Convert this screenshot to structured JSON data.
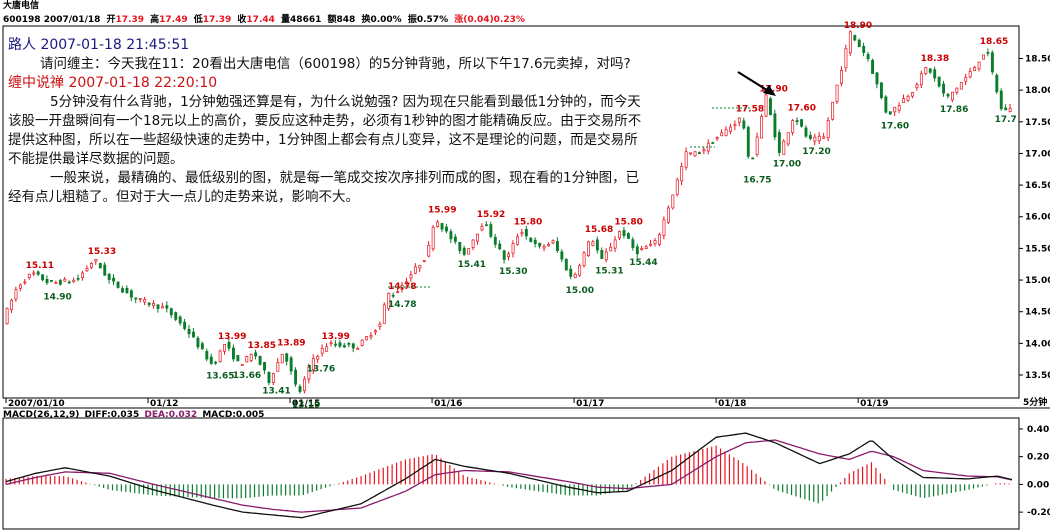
{
  "header": {
    "stock_name": "大唐电信",
    "code_date": "600198 2007/01/18",
    "open": {
      "label": "开",
      "value": "17.39"
    },
    "high": {
      "label": "高",
      "value": "17.49"
    },
    "low": {
      "label": "低",
      "value": "17.39"
    },
    "close": {
      "label": "收",
      "value": "17.44"
    },
    "volume": {
      "label": "量",
      "value": "48661"
    },
    "amount": {
      "label": "额",
      "value": "848"
    },
    "turnover": {
      "label": "换",
      "value": "0.00%"
    },
    "amplitude": {
      "label": "振",
      "value": "0.57%"
    },
    "change": {
      "label": "涨",
      "value": "(0.04)0.23%"
    }
  },
  "annotation": {
    "q_author": "路人 2007-01-18 21:45:51",
    "question": "请问缠主：今天我在11：20看出大唐电信（600198）的5分钟背驰，所以下午17.6元卖掉，对吗?",
    "a_author": "缠中说禅 2007-01-18 22:20:10",
    "answer_p1": "5分钟没有什么背驰，1分钟勉强还算是有，为什么说勉强? 因为现在只能看到最低1分钟的，而今天该股一开盘瞬间有一个18元以上的高价，要反应这种走势，必须有1秒钟的图才能精确反应。由于交易所不提供这种图，所以在一些超级快速的走势中，1分钟图上都会有点儿变异，这不是理论的问题，而是交易所不能提供最详尽数据的问题。",
    "answer_p2": "一般来说，最精确的、最低级别的图，就是每一笔成交按次序排列而成的图，现在看的1分钟图，已经有点儿粗糙了。但对于大一点儿的走势来说，影响不大。"
  },
  "macd_header": {
    "title": "MACD(26,12,9)",
    "diff": "DIFF:0.035",
    "dea": "DEA:0.032",
    "macd": "MACD:0.005"
  },
  "period_label": "5分钟",
  "colors": {
    "up": "#e8141e",
    "down": "#0a7d2c",
    "high_label": "#cc0000",
    "low_label": "#0a5c1e",
    "diff": "#111111",
    "dea": "#8b1a6b"
  },
  "chart_data": {
    "type": "candlestick",
    "y_axis": {
      "min": 13.2,
      "max": 18.95,
      "ticks": [
        13.5,
        14.0,
        14.5,
        15.0,
        15.5,
        16.0,
        16.5,
        17.0,
        17.5,
        18.0,
        18.5
      ]
    },
    "x_tick_labels": [
      {
        "label": "2007/01/10",
        "index": 0
      },
      {
        "label": "01/12",
        "index": 96
      },
      {
        "label": "01/15",
        "index": 192
      },
      {
        "label": "01/16",
        "index": 288
      },
      {
        "label": "01/17",
        "index": 384
      },
      {
        "label": "01/18",
        "index": 480
      },
      {
        "label": "01/19",
        "index": 576
      }
    ],
    "price_path": [
      [
        0,
        14.35
      ],
      [
        10,
        14.9
      ],
      [
        20,
        15.11
      ],
      [
        32,
        14.95
      ],
      [
        50,
        15.0
      ],
      [
        62,
        15.33
      ],
      [
        72,
        15.0
      ],
      [
        90,
        14.7
      ],
      [
        110,
        14.55
      ],
      [
        125,
        14.2
      ],
      [
        142,
        13.65
      ],
      [
        150,
        13.99
      ],
      [
        160,
        13.66
      ],
      [
        170,
        13.85
      ],
      [
        180,
        13.41
      ],
      [
        190,
        13.89
      ],
      [
        200,
        13.19
      ],
      [
        210,
        13.76
      ],
      [
        220,
        13.99
      ],
      [
        240,
        13.95
      ],
      [
        255,
        14.3
      ],
      [
        260,
        14.78
      ],
      [
        265,
        14.78
      ],
      [
        287,
        15.4
      ],
      [
        292,
        15.99
      ],
      [
        305,
        15.6
      ],
      [
        312,
        15.41
      ],
      [
        325,
        15.92
      ],
      [
        340,
        15.3
      ],
      [
        350,
        15.8
      ],
      [
        362,
        15.5
      ],
      [
        372,
        15.6
      ],
      [
        385,
        15.0
      ],
      [
        398,
        15.68
      ],
      [
        405,
        15.31
      ],
      [
        418,
        15.8
      ],
      [
        428,
        15.44
      ],
      [
        442,
        15.6
      ],
      [
        455,
        16.5
      ],
      [
        462,
        17.0
      ],
      [
        470,
        17.0
      ],
      [
        500,
        17.58
      ],
      [
        505,
        16.75
      ],
      [
        516,
        17.9
      ],
      [
        525,
        17.0
      ],
      [
        535,
        17.6
      ],
      [
        545,
        17.2
      ],
      [
        555,
        17.25
      ],
      [
        573,
        18.9
      ],
      [
        585,
        18.5
      ],
      [
        598,
        17.6
      ],
      [
        615,
        18.0
      ],
      [
        625,
        18.38
      ],
      [
        638,
        17.86
      ],
      [
        655,
        18.3
      ],
      [
        665,
        18.65
      ],
      [
        675,
        17.7
      ]
    ],
    "high_labels": [
      {
        "value": "15.11",
        "index": 20
      },
      {
        "value": "15.33",
        "index": 62
      },
      {
        "value": "13.99",
        "index": 150
      },
      {
        "value": "13.85",
        "index": 170
      },
      {
        "value": "13.89",
        "index": 190
      },
      {
        "value": "13.99",
        "index": 220
      },
      {
        "value": "14.78",
        "index": 265
      },
      {
        "value": "15.99",
        "index": 292
      },
      {
        "value": "15.92",
        "index": 325
      },
      {
        "value": "15.80",
        "index": 350
      },
      {
        "value": "15.68",
        "index": 398
      },
      {
        "value": "15.80",
        "index": 418
      },
      {
        "value": "17.58",
        "index": 500
      },
      {
        "value": "17.90",
        "index": 516
      },
      {
        "value": "17.60",
        "index": 535
      },
      {
        "value": "18.90",
        "index": 573
      },
      {
        "value": "18.38",
        "index": 625
      },
      {
        "value": "18.65",
        "index": 665
      }
    ],
    "low_labels": [
      {
        "value": "14.90",
        "index": 32
      },
      {
        "value": "13.65",
        "index": 142
      },
      {
        "value": "13.66",
        "index": 160
      },
      {
        "value": "13.41",
        "index": 180
      },
      {
        "value": "13.19",
        "index": 200
      },
      {
        "value": "13.76",
        "index": 210
      },
      {
        "value": "14.78",
        "index": 265
      },
      {
        "value": "15.41",
        "index": 312
      },
      {
        "value": "15.30",
        "index": 340
      },
      {
        "value": "15.00",
        "index": 385
      },
      {
        "value": "15.31",
        "index": 405
      },
      {
        "value": "15.44",
        "index": 428
      },
      {
        "value": "16.75",
        "index": 505
      },
      {
        "value": "17.00",
        "index": 525
      },
      {
        "value": "17.20",
        "index": 545
      },
      {
        "value": "17.60",
        "index": 598
      },
      {
        "value": "17.86",
        "index": 638
      },
      {
        "value": "17.7",
        "index": 675
      }
    ],
    "macd_axis": {
      "min": -0.3,
      "max": 0.45,
      "ticks": [
        "0.40",
        "0.20",
        "0.00",
        "-0.20"
      ]
    },
    "diff_path": [
      [
        0,
        0.02
      ],
      [
        20,
        0.08
      ],
      [
        40,
        0.12
      ],
      [
        70,
        0.06
      ],
      [
        100,
        -0.04
      ],
      [
        140,
        -0.15
      ],
      [
        160,
        -0.2
      ],
      [
        180,
        -0.22
      ],
      [
        200,
        -0.24
      ],
      [
        240,
        -0.14
      ],
      [
        270,
        0.04
      ],
      [
        290,
        0.18
      ],
      [
        310,
        0.13
      ],
      [
        340,
        0.08
      ],
      [
        380,
        -0.02
      ],
      [
        400,
        -0.06
      ],
      [
        420,
        -0.05
      ],
      [
        450,
        0.1
      ],
      [
        480,
        0.34
      ],
      [
        500,
        0.37
      ],
      [
        520,
        0.3
      ],
      [
        550,
        0.15
      ],
      [
        570,
        0.22
      ],
      [
        585,
        0.32
      ],
      [
        600,
        0.18
      ],
      [
        620,
        0.05
      ],
      [
        650,
        0.04
      ],
      [
        670,
        0.06
      ],
      [
        680,
        0.035
      ]
    ],
    "dea_path": [
      [
        0,
        0.0
      ],
      [
        20,
        0.05
      ],
      [
        40,
        0.09
      ],
      [
        70,
        0.08
      ],
      [
        100,
        0.0
      ],
      [
        140,
        -0.1
      ],
      [
        160,
        -0.15
      ],
      [
        180,
        -0.18
      ],
      [
        200,
        -0.2
      ],
      [
        240,
        -0.17
      ],
      [
        270,
        -0.05
      ],
      [
        290,
        0.07
      ],
      [
        310,
        0.1
      ],
      [
        340,
        0.09
      ],
      [
        380,
        0.02
      ],
      [
        400,
        -0.02
      ],
      [
        420,
        -0.03
      ],
      [
        450,
        0.0
      ],
      [
        480,
        0.2
      ],
      [
        500,
        0.3
      ],
      [
        520,
        0.32
      ],
      [
        550,
        0.22
      ],
      [
        570,
        0.18
      ],
      [
        585,
        0.24
      ],
      [
        600,
        0.2
      ],
      [
        620,
        0.1
      ],
      [
        650,
        0.06
      ],
      [
        670,
        0.055
      ],
      [
        680,
        0.032
      ]
    ]
  }
}
